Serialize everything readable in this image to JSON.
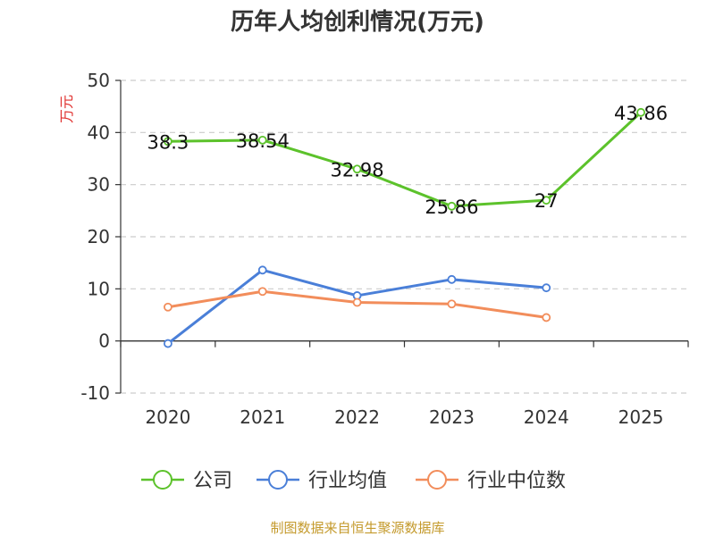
{
  "chart_data": {
    "type": "line",
    "title": "历年人均创利情况(万元)",
    "ylabel": "万元",
    "xlabel": "",
    "categories": [
      "2020",
      "2021",
      "2022",
      "2023",
      "2024",
      "2025"
    ],
    "ylim": [
      -10,
      50
    ],
    "yticks": [
      -10,
      0,
      10,
      20,
      30,
      40,
      50
    ],
    "grid": true,
    "legend_position": "bottom",
    "series": [
      {
        "name": "公司",
        "color": "#5cc22b",
        "values": [
          38.3,
          38.54,
          32.98,
          25.86,
          27,
          43.86
        ],
        "labels": [
          "38.3",
          "38.54",
          "32.98",
          "25.86",
          "27",
          "43.86"
        ]
      },
      {
        "name": "行业均值",
        "color": "#4a7fd8",
        "values": [
          -0.5,
          13.6,
          8.7,
          11.8,
          10.2,
          null
        ]
      },
      {
        "name": "行业中位数",
        "color": "#f28d5b",
        "values": [
          6.5,
          9.5,
          7.4,
          7.1,
          4.5,
          null
        ]
      }
    ]
  },
  "source": "制图数据来自恒生聚源数据库"
}
